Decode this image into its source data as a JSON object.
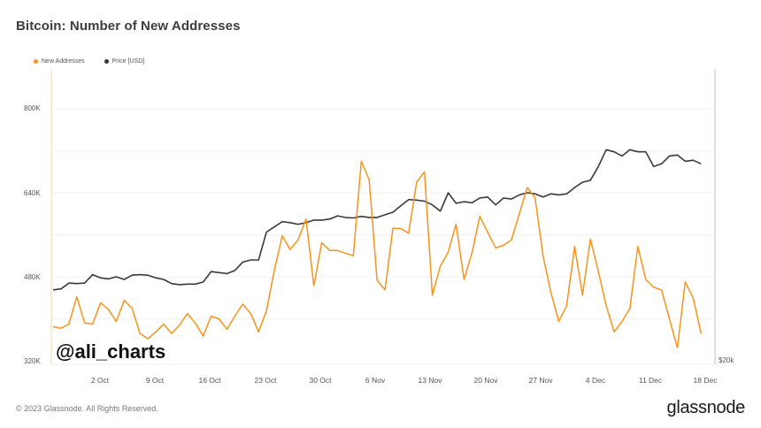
{
  "title": "Bitcoin: Number of New Addresses",
  "legend": [
    {
      "label": "New Addresses",
      "color": "#f7931a"
    },
    {
      "label": "Price [USD]",
      "color": "#333333"
    }
  ],
  "y_axis_left": {
    "ticks": [
      "800K",
      "640K",
      "480K",
      "320K"
    ]
  },
  "y_axis_right": {
    "ticks": [
      "$20k"
    ]
  },
  "x_axis": {
    "ticks": [
      "2 Oct",
      "9 Oct",
      "16 Oct",
      "23 Oct",
      "30 Oct",
      "6 Nov",
      "13 Nov",
      "20 Nov",
      "27 Nov",
      "4 Dec",
      "11 Dec",
      "18 Dec"
    ]
  },
  "watermark": "@ali_charts",
  "footer": {
    "copyright": "© 2023 Glassnode. All Rights Reserved.",
    "brand": "glassnode"
  },
  "chart_data": {
    "type": "line",
    "title": "Bitcoin: Number of New Addresses",
    "xlabel": "",
    "ylabel": "New Addresses",
    "ylim": [
      320000,
      850000
    ],
    "grid": true,
    "legend_position": "top-left",
    "x": [
      "26 Sep",
      "27 Sep",
      "28 Sep",
      "29 Sep",
      "30 Sep",
      "1 Oct",
      "2 Oct",
      "3 Oct",
      "4 Oct",
      "5 Oct",
      "6 Oct",
      "7 Oct",
      "8 Oct",
      "9 Oct",
      "10 Oct",
      "11 Oct",
      "12 Oct",
      "13 Oct",
      "14 Oct",
      "15 Oct",
      "16 Oct",
      "17 Oct",
      "18 Oct",
      "19 Oct",
      "20 Oct",
      "21 Oct",
      "22 Oct",
      "23 Oct",
      "24 Oct",
      "25 Oct",
      "26 Oct",
      "27 Oct",
      "28 Oct",
      "29 Oct",
      "30 Oct",
      "31 Oct",
      "1 Nov",
      "2 Nov",
      "3 Nov",
      "4 Nov",
      "5 Nov",
      "6 Nov",
      "7 Nov",
      "8 Nov",
      "9 Nov",
      "10 Nov",
      "11 Nov",
      "12 Nov",
      "13 Nov",
      "14 Nov",
      "15 Nov",
      "16 Nov",
      "17 Nov",
      "18 Nov",
      "19 Nov",
      "20 Nov",
      "21 Nov",
      "22 Nov",
      "23 Nov",
      "24 Nov",
      "25 Nov",
      "26 Nov",
      "27 Nov",
      "28 Nov",
      "29 Nov",
      "30 Nov",
      "1 Dec",
      "2 Dec",
      "3 Dec",
      "4 Dec",
      "5 Dec",
      "6 Dec",
      "7 Dec",
      "8 Dec",
      "9 Dec",
      "10 Dec",
      "11 Dec",
      "12 Dec",
      "13 Dec",
      "14 Dec",
      "15 Dec",
      "16 Dec",
      "17 Dec"
    ],
    "series": [
      {
        "name": "New Addresses",
        "color": "#f7931a",
        "axis": "left",
        "values": [
          385000,
          382000,
          390000,
          442000,
          392000,
          390000,
          430000,
          418000,
          395000,
          435000,
          420000,
          372000,
          362000,
          375000,
          390000,
          372000,
          388000,
          410000,
          392000,
          367000,
          405000,
          400000,
          380000,
          405000,
          428000,
          410000,
          375000,
          415000,
          492000,
          558000,
          532000,
          550000,
          590000,
          463000,
          545000,
          530000,
          530000,
          525000,
          520000,
          700000,
          665000,
          474000,
          455000,
          572000,
          572000,
          563000,
          660000,
          680000,
          445000,
          500000,
          527000,
          580000,
          475000,
          525000,
          595000,
          565000,
          535000,
          540000,
          550000,
          600000,
          650000,
          630000,
          520000,
          450000,
          395000,
          425000,
          538000,
          445000,
          552000,
          490000,
          425000,
          375000,
          395000,
          420000,
          538000,
          475000,
          460000,
          455000,
          400000,
          345000,
          470000,
          440000,
          372000
        ]
      },
      {
        "name": "Price [USD]",
        "color": "#333333",
        "axis": "right",
        "values": [
          455000,
          457000,
          468000,
          467000,
          468000,
          484000,
          478000,
          476000,
          480000,
          475000,
          483000,
          484000,
          483000,
          478000,
          475000,
          467000,
          465000,
          466000,
          466000,
          470000,
          490000,
          488000,
          486000,
          492000,
          508000,
          512000,
          512000,
          565000,
          575000,
          585000,
          583000,
          580000,
          583000,
          588000,
          588000,
          590000,
          596000,
          593000,
          592000,
          595000,
          593000,
          593000,
          598000,
          603000,
          615000,
          627000,
          626000,
          624000,
          617000,
          605000,
          640000,
          620000,
          623000,
          621000,
          630000,
          632000,
          617000,
          630000,
          628000,
          636000,
          640000,
          638000,
          632000,
          638000,
          636000,
          638000,
          650000,
          660000,
          664000,
          690000,
          722000,
          718000,
          710000,
          722000,
          718000,
          718000,
          690000,
          695000,
          710000,
          712000,
          700000,
          702000,
          695000
        ]
      }
    ]
  }
}
